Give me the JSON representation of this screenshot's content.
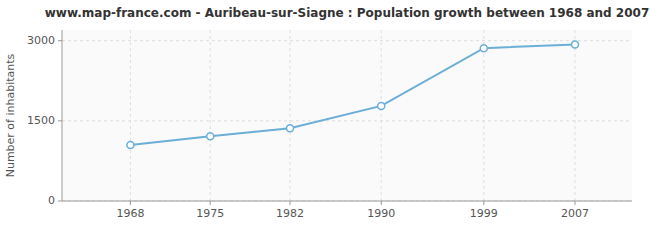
{
  "chart_data": {
    "type": "line",
    "title": "www.map-france.com - Auribeau-sur-Siagne : Population growth between 1968 and 2007",
    "y_label": "Number of inhabitants",
    "x": [
      1968,
      1975,
      1982,
      1990,
      1999,
      2007
    ],
    "values": [
      1050,
      1210,
      1360,
      1780,
      2860,
      2930
    ],
    "xlim": [
      1962,
      2012
    ],
    "ylim": [
      0,
      3200
    ],
    "xticks": [
      1968,
      1975,
      1982,
      1990,
      1999,
      2007
    ],
    "yticks": [
      0,
      1500,
      3000
    ],
    "grid": true,
    "color": "#6baed6",
    "marker": "circle"
  }
}
